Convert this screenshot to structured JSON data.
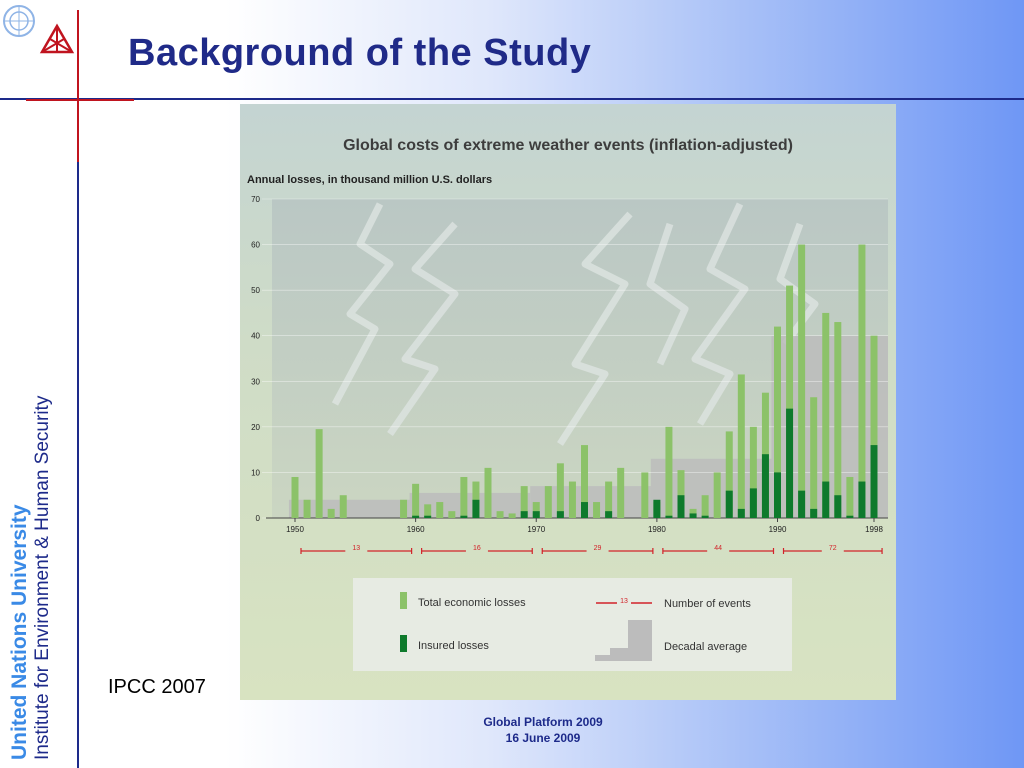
{
  "slide": {
    "title": "Background of the Study",
    "source": "IPCC 2007",
    "side_university": "United Nations University",
    "side_institute": "Institute for Environment & Human Security",
    "footer_line1": "Global Platform 2009",
    "footer_line2": "16 June 2009"
  },
  "icons": {
    "un_logo": "un-emblem-icon",
    "unu_logo": "unu-logo-icon"
  },
  "colors": {
    "title": "#1f2a88",
    "total_bar": "#8cc269",
    "insured_bar": "#0e7a2c",
    "events_line": "#d2232a",
    "decadal": "#bcbcbc"
  },
  "chart_data": {
    "type": "bar",
    "title": "Global costs of extreme weather events (inflation-adjusted)",
    "subtitle": "Annual losses, in thousand million U.S. dollars",
    "ylim": [
      0,
      70
    ],
    "yticks": [
      "0",
      "10",
      "20",
      "30",
      "40",
      "50",
      "60",
      "70"
    ],
    "xticks": [
      "1950",
      "1960",
      "1970",
      "1980",
      "1990",
      "1998"
    ],
    "years": [
      1950,
      1951,
      1952,
      1953,
      1954,
      1955,
      1956,
      1957,
      1958,
      1959,
      1960,
      1961,
      1962,
      1963,
      1964,
      1965,
      1966,
      1967,
      1968,
      1969,
      1970,
      1971,
      1972,
      1973,
      1974,
      1975,
      1976,
      1977,
      1978,
      1979,
      1980,
      1981,
      1982,
      1983,
      1984,
      1985,
      1986,
      1987,
      1988,
      1989,
      1990,
      1991,
      1992,
      1993,
      1994,
      1995,
      1996,
      1997,
      1998
    ],
    "series": [
      {
        "name": "Total economic losses",
        "values": [
          9,
          4,
          19.5,
          2,
          5,
          0,
          0,
          0,
          0,
          4,
          7.5,
          3,
          3.5,
          1.5,
          9,
          8,
          11,
          1.5,
          1,
          7,
          3.5,
          7,
          12,
          8,
          16,
          3.5,
          8,
          11,
          0,
          10,
          3.5,
          20,
          10.5,
          2,
          5,
          10,
          19,
          31.5,
          20,
          27.5,
          42,
          51,
          60,
          26.5,
          45,
          43,
          9,
          60,
          40
        ]
      },
      {
        "name": "Insured losses",
        "values": [
          0,
          0,
          0,
          0,
          0,
          0,
          0,
          0,
          0,
          0,
          0.5,
          0.5,
          0,
          0,
          0.5,
          4,
          0,
          0,
          0,
          1.5,
          1.5,
          0,
          1.5,
          0,
          3.5,
          0,
          1.5,
          0,
          0,
          0,
          4,
          0.5,
          5,
          1,
          0.5,
          0,
          6,
          2,
          6.5,
          14,
          10,
          24,
          6,
          2,
          8,
          5,
          0.5,
          8,
          16
        ]
      }
    ],
    "decadal_average": [
      {
        "from": 1950,
        "to": 1959,
        "value": 4
      },
      {
        "from": 1960,
        "to": 1969,
        "value": 5.5
      },
      {
        "from": 1970,
        "to": 1979,
        "value": 7
      },
      {
        "from": 1980,
        "to": 1989,
        "value": 13
      },
      {
        "from": 1990,
        "to": 1998,
        "value": 40
      }
    ],
    "events": [
      {
        "from": 1950,
        "to": 1959,
        "count": "13"
      },
      {
        "from": 1960,
        "to": 1969,
        "count": "16"
      },
      {
        "from": 1970,
        "to": 1979,
        "count": "29"
      },
      {
        "from": 1980,
        "to": 1989,
        "count": "44"
      },
      {
        "from": 1990,
        "to": 1998,
        "count": "72"
      }
    ],
    "legend": {
      "total": "Total economic losses",
      "insured": "Insured losses",
      "events_sample": "13",
      "events": "Number of events",
      "decadal": "Decadal average"
    },
    "legend_position": "bottom"
  }
}
